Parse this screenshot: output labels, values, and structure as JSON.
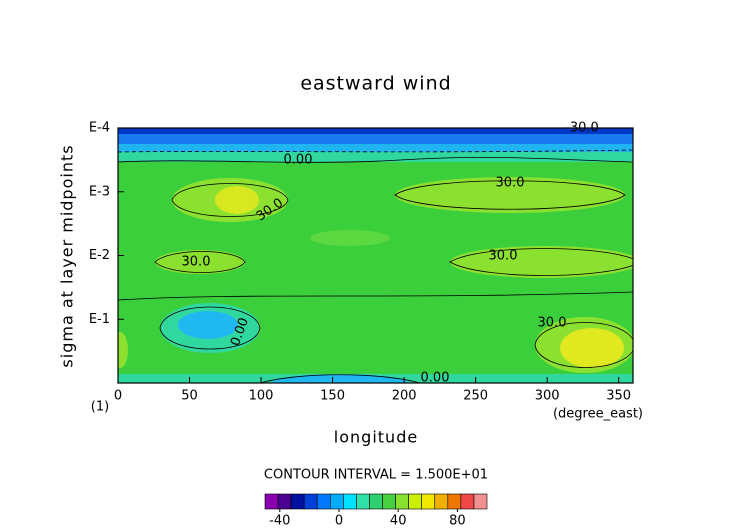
{
  "chart_data": {
    "type": "contour",
    "title": "eastward wind",
    "x_label": "longitude",
    "y_label": "sigma at layer midpoints",
    "x_units": "(degree_east)",
    "y_origin_label": "(1)",
    "xlim": [
      0,
      360
    ],
    "xticks": [
      0,
      50,
      100,
      150,
      200,
      250,
      300,
      350
    ],
    "ylim": [
      1,
      0.0001
    ],
    "log_y": true,
    "yticks": [
      {
        "value": 0.0001,
        "label": "E-4"
      },
      {
        "value": 0.001,
        "label": "E-3"
      },
      {
        "value": 0.01,
        "label": "E-2"
      },
      {
        "value": 0.1,
        "label": "E-1"
      }
    ],
    "contour_labels": [
      "-30.0",
      "0.00",
      "30.0",
      "30.0",
      "30.0",
      "30.0",
      "30.0",
      "0.00",
      "0.00"
    ],
    "contour_interval": "CONTOUR INTERVAL = 1.500E+01",
    "colorbar": {
      "lim": [
        -50,
        100
      ],
      "ticks": [
        -40,
        0,
        40,
        80
      ],
      "colors": [
        "#8a00b0",
        "#4a0090",
        "#0010a0",
        "#0040d8",
        "#0078ff",
        "#00acff",
        "#00e0ff",
        "#30e0a8",
        "#30d070",
        "#48d040",
        "#88e030",
        "#c8f000",
        "#f0e800",
        "#f0b000",
        "#f07800",
        "#f04848",
        "#f09090"
      ]
    }
  }
}
